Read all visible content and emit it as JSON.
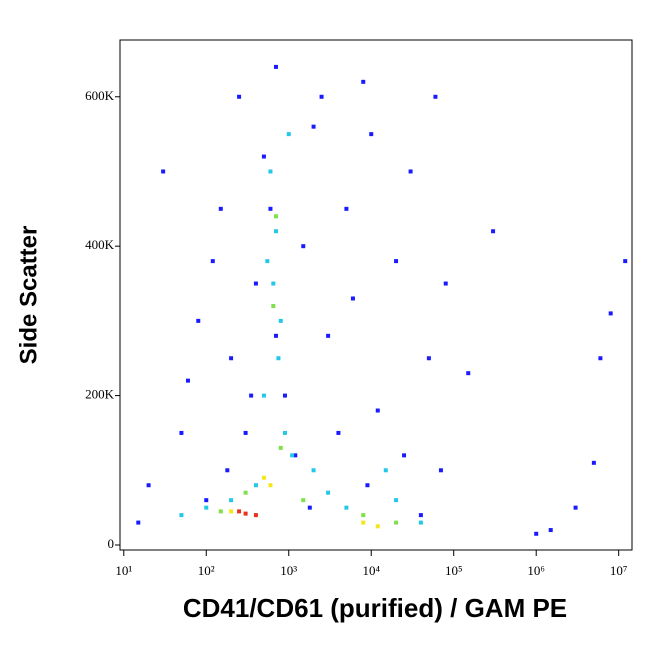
{
  "chart_data": {
    "type": "scatter",
    "x_label": "CD41/CD61 (purified) / GAM PE",
    "y_label": "Side Scatter",
    "x_log": true,
    "xlim": [
      9,
      14500000
    ],
    "ylim": [
      -6700,
      676000
    ],
    "xticks": [
      {
        "value": 10,
        "label": "10¹"
      },
      {
        "value": 100,
        "label": "10²"
      },
      {
        "value": 1000,
        "label": "10³"
      },
      {
        "value": 10000,
        "label": "10⁴"
      },
      {
        "value": 100000,
        "label": "10⁵"
      },
      {
        "value": 1000000,
        "label": "10⁶"
      },
      {
        "value": 10000000,
        "label": "10⁷"
      }
    ],
    "yticks": [
      0,
      {
        "value": 200000,
        "label": "200K"
      },
      {
        "value": 400000,
        "label": "400K"
      },
      {
        "value": 600000,
        "label": "600K"
      }
    ],
    "series": [
      {
        "color": "#1a1aff",
        "x": [
          30,
          50,
          80,
          100,
          150,
          200,
          250,
          300,
          400,
          500,
          700,
          900,
          1500,
          2000,
          3000,
          5000,
          8000,
          12000,
          20000,
          30000,
          50000,
          70000,
          40000,
          15,
          20,
          60,
          120,
          180,
          350,
          600,
          1200,
          2500,
          4000,
          6000,
          10000,
          25000,
          60000,
          80000,
          1000000,
          1500000,
          3000000,
          5000000,
          6000000,
          8000000,
          12000000,
          300000,
          150000,
          700,
          1800,
          9000
        ],
        "values": [
          500000,
          150000,
          300000,
          60000,
          450000,
          250000,
          600000,
          150000,
          350000,
          520000,
          640000,
          200000,
          400000,
          560000,
          280000,
          450000,
          620000,
          180000,
          380000,
          500000,
          250000,
          100000,
          40000,
          30000,
          80000,
          220000,
          380000,
          100000,
          200000,
          450000,
          120000,
          600000,
          150000,
          330000,
          550000,
          120000,
          600000,
          350000,
          15000,
          20000,
          50000,
          110000,
          250000,
          310000,
          380000,
          420000,
          230000,
          280000,
          50000,
          80000
        ]
      },
      {
        "color": "#22c8e8",
        "x": [
          600,
          700,
          650,
          800,
          750,
          900,
          1100,
          500,
          400,
          200,
          100,
          50,
          3000,
          5000,
          20000,
          40000,
          15000,
          1000,
          550,
          2000
        ],
        "values": [
          500000,
          420000,
          350000,
          300000,
          250000,
          150000,
          120000,
          200000,
          80000,
          60000,
          50000,
          40000,
          70000,
          50000,
          60000,
          30000,
          100000,
          550000,
          380000,
          100000
        ]
      },
      {
        "color": "#7fe04a",
        "x": [
          700,
          650,
          800,
          300,
          1500,
          8000,
          20000,
          150
        ],
        "values": [
          440000,
          320000,
          130000,
          70000,
          60000,
          40000,
          30000,
          45000
        ]
      },
      {
        "color": "#f5e61a",
        "x": [
          500,
          600,
          200,
          12000,
          8000
        ],
        "values": [
          90000,
          80000,
          45000,
          25000,
          30000
        ]
      },
      {
        "color": "#e8321e",
        "x": [
          300,
          400,
          250
        ],
        "values": [
          42000,
          40000,
          45000
        ]
      }
    ]
  }
}
